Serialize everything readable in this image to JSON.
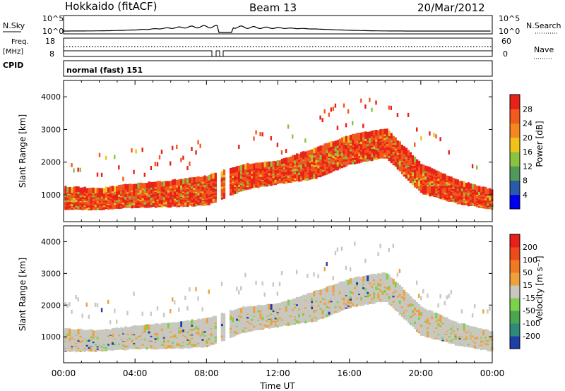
{
  "header": {
    "radar": "Hokkaido (fitACF)",
    "beam": "Beam 13",
    "date": "20/Mar/2012"
  },
  "summary": {
    "nsky_label": "N.Sky",
    "nsky_ticks": [
      "10^5",
      "10^0"
    ],
    "nsearch_label": "N.Search",
    "nsearch_ticks": [
      "10^5",
      "10^0"
    ],
    "freq_label_line1": "Freq.",
    "freq_label_line2": "[MHz]",
    "freq_ticks": [
      "18",
      "8"
    ],
    "nave_label": "Nave",
    "nave_ticks": [
      "60",
      "0"
    ],
    "cpid_label": "CPID",
    "cpid_value": "normal (fast) 151"
  },
  "chart_data": [
    {
      "type": "heatmap",
      "panel": "power",
      "xlabel": "",
      "ylabel": "Slant Range [km]",
      "yticks": [
        "1000",
        "2000",
        "3000",
        "4000"
      ],
      "ylim": [
        180,
        4500
      ],
      "colorbar": {
        "label": "Power [dB]",
        "ticks": [
          "4",
          "8",
          "12",
          "16",
          "20",
          "24",
          "28"
        ],
        "colors": [
          "#0000ee",
          "#2a5aa8",
          "#4f9a5a",
          "#8ac43f",
          "#f0c21a",
          "#f5871f",
          "#f15a1c",
          "#e8211a"
        ]
      },
      "echo_band": [
        {
          "time": "00:00",
          "lower_km": 700,
          "upper_km": 1300
        },
        {
          "time": "02:00",
          "lower_km": 720,
          "upper_km": 1250
        },
        {
          "time": "04:00",
          "lower_km": 780,
          "upper_km": 1400
        },
        {
          "time": "06:00",
          "lower_km": 800,
          "upper_km": 1500
        },
        {
          "time": "08:00",
          "lower_km": 850,
          "upper_km": 1650
        },
        {
          "time": "10:00",
          "lower_km": 1300,
          "upper_km": 2000
        },
        {
          "time": "12:00",
          "lower_km": 1500,
          "upper_km": 2100
        },
        {
          "time": "14:00",
          "lower_km": 1650,
          "upper_km": 2500
        },
        {
          "time": "16:00",
          "lower_km": 2100,
          "upper_km": 2900
        },
        {
          "time": "18:00",
          "lower_km": 2300,
          "upper_km": 3100
        },
        {
          "time": "20:00",
          "lower_km": 1200,
          "upper_km": 2000
        },
        {
          "time": "22:00",
          "lower_km": 900,
          "upper_km": 1500
        },
        {
          "time": "24:00",
          "lower_km": 700,
          "upper_km": 1200
        }
      ]
    },
    {
      "type": "heatmap",
      "panel": "velocity",
      "xlabel": "Time UT",
      "ylabel": "Slant Range [km]",
      "xticks": [
        "00:00",
        "04:00",
        "08:00",
        "12:00",
        "16:00",
        "20:00",
        "00:00"
      ],
      "yticks": [
        "1000",
        "2000",
        "3000",
        "4000"
      ],
      "ylim": [
        180,
        4500
      ],
      "colorbar": {
        "label": "Velocity [m s⁻¹]",
        "ticks": [
          "200",
          "100",
          "50",
          "15",
          "-15",
          "-50",
          "-100",
          "-200"
        ],
        "colors": [
          "#1f3fa8",
          "#2f8a7a",
          "#4aa64f",
          "#7bd14a",
          "#c8c8c0",
          "#f0a03a",
          "#f07a22",
          "#ef4a1c",
          "#e8201a"
        ]
      }
    }
  ]
}
